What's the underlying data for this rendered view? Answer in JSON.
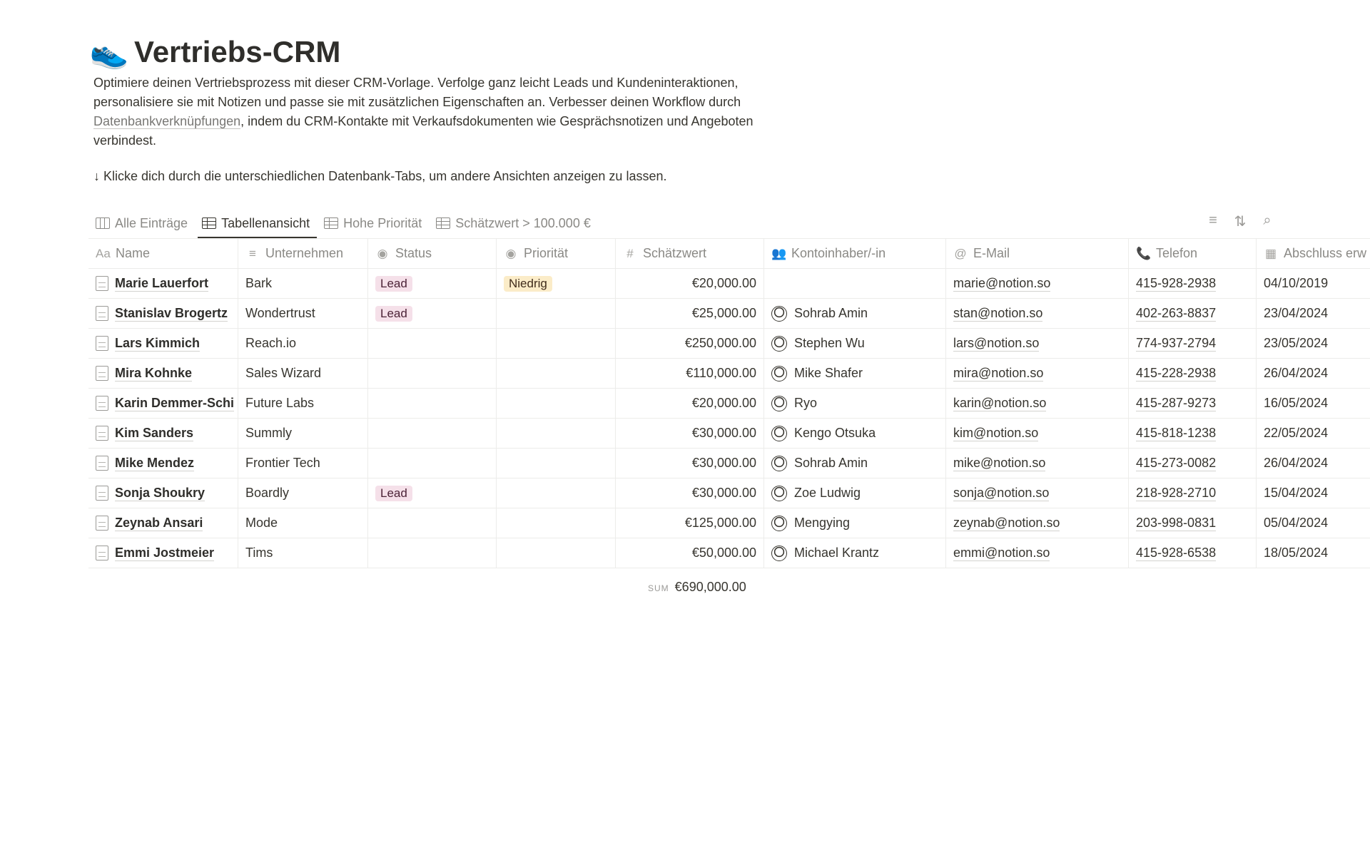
{
  "page": {
    "icon": "running-shoe-icon",
    "title": "Vertriebs-CRM",
    "description_1": "Optimiere deinen Vertriebsprozess mit dieser CRM-Vorlage. Verfolge ganz leicht Leads und Kundeninteraktionen, personalisiere sie mit Notizen und passe sie mit zusätzlichen Eigenschaften an. Verbesser deinen Workflow durch ",
    "description_link": "Datenbankverknüpfungen",
    "description_2": ", indem du CRM-Kontakte mit Verkaufsdokumenten wie Gesprächsnotizen und Angeboten verbindest.",
    "hint": "↓ Klicke dich durch die unterschiedlichen Datenbank-Tabs, um andere Ansichten anzeigen zu lassen."
  },
  "tabs": [
    {
      "label": "Alle Einträge",
      "icon": "board"
    },
    {
      "label": "Tabellenansicht",
      "icon": "table",
      "active": true
    },
    {
      "label": "Hohe Priorität",
      "icon": "table"
    },
    {
      "label": "Schätzwert > 100.000 €",
      "icon": "table"
    }
  ],
  "toolbar": {
    "filter": "filter-icon",
    "sort": "sort-icon",
    "search": "search-icon"
  },
  "columns": [
    {
      "label": "Name",
      "icon": "Aa"
    },
    {
      "label": "Unternehmen",
      "icon": "≡"
    },
    {
      "label": "Status",
      "icon": "◉"
    },
    {
      "label": "Priorität",
      "icon": "◉"
    },
    {
      "label": "Schätzwert",
      "icon": "#"
    },
    {
      "label": "Kontoinhaber/-in",
      "icon": "👥"
    },
    {
      "label": "E-Mail",
      "icon": "@"
    },
    {
      "label": "Telefon",
      "icon": "📞"
    },
    {
      "label": "Abschluss erw",
      "icon": "▦"
    }
  ],
  "rows": [
    {
      "name": "Marie Lauerfort",
      "company": "Bark",
      "status": "Lead",
      "priority": "Niedrig",
      "value": "€20,000.00",
      "owner": "",
      "email": "marie@notion.so",
      "phone": "415-928-2938",
      "date": "04/10/2019"
    },
    {
      "name": "Stanislav Brogertz",
      "company": "Wondertrust",
      "status": "Lead",
      "priority": "",
      "value": "€25,000.00",
      "owner": "Sohrab Amin",
      "email": "stan@notion.so",
      "phone": "402-263-8837",
      "date": "23/04/2024"
    },
    {
      "name": "Lars Kimmich",
      "company": "Reach.io",
      "status": "",
      "priority": "",
      "value": "€250,000.00",
      "owner": "Stephen Wu",
      "email": "lars@notion.so",
      "phone": "774-937-2794",
      "date": "23/05/2024"
    },
    {
      "name": "Mira Kohnke",
      "company": "Sales Wizard",
      "status": "",
      "priority": "",
      "value": "€110,000.00",
      "owner": "Mike Shafer",
      "email": "mira@notion.so",
      "phone": "415-228-2938",
      "date": "26/04/2024"
    },
    {
      "name": "Karin Demmer-Schi",
      "company": "Future Labs",
      "status": "",
      "priority": "",
      "value": "€20,000.00",
      "owner": "Ryo",
      "email": "karin@notion.so",
      "phone": "415-287-9273",
      "date": "16/05/2024"
    },
    {
      "name": "Kim Sanders",
      "company": "Summly",
      "status": "",
      "priority": "",
      "value": "€30,000.00",
      "owner": "Kengo Otsuka",
      "email": "kim@notion.so",
      "phone": "415-818-1238",
      "date": "22/05/2024"
    },
    {
      "name": "Mike Mendez",
      "company": "Frontier Tech",
      "status": "",
      "priority": "",
      "value": "€30,000.00",
      "owner": "Sohrab Amin",
      "email": "mike@notion.so",
      "phone": "415-273-0082",
      "date": "26/04/2024"
    },
    {
      "name": "Sonja Shoukry",
      "company": "Boardly",
      "status": "Lead",
      "priority": "",
      "value": "€30,000.00",
      "owner": "Zoe Ludwig",
      "email": "sonja@notion.so",
      "phone": "218-928-2710",
      "date": "15/04/2024"
    },
    {
      "name": "Zeynab Ansari",
      "company": "Mode",
      "status": "",
      "priority": "",
      "value": "€125,000.00",
      "owner": "Mengying",
      "email": "zeynab@notion.so",
      "phone": "203-998-0831",
      "date": "05/04/2024"
    },
    {
      "name": "Emmi Jostmeier",
      "company": "Tims",
      "status": "",
      "priority": "",
      "value": "€50,000.00",
      "owner": "Michael Krantz",
      "email": "emmi@notion.so",
      "phone": "415-928-6538",
      "date": "18/05/2024"
    }
  ],
  "summary": {
    "label": "SUM",
    "value": "€690,000.00"
  },
  "colors": {
    "lead_tag": "#f5e0e9",
    "low_tag": "#fbecc8",
    "text": "#37352f"
  }
}
